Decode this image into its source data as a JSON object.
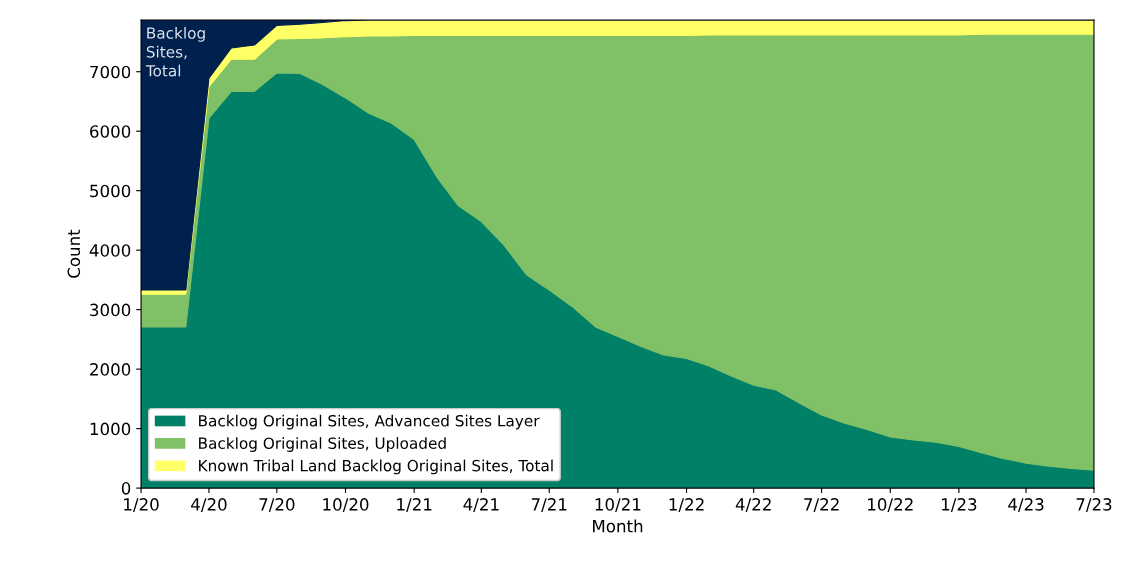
{
  "chart_data": {
    "type": "area",
    "stacked": true,
    "xlabel": "Month",
    "ylabel": "Count",
    "x": [
      "2020-01",
      "2020-02",
      "2020-03",
      "2020-04",
      "2020-05",
      "2020-06",
      "2020-07",
      "2020-08",
      "2020-09",
      "2020-10",
      "2020-11",
      "2020-12",
      "2021-01",
      "2021-02",
      "2021-03",
      "2021-04",
      "2021-05",
      "2021-06",
      "2021-07",
      "2021-08",
      "2021-09",
      "2021-10",
      "2021-11",
      "2021-12",
      "2022-01",
      "2022-02",
      "2022-03",
      "2022-04",
      "2022-05",
      "2022-06",
      "2022-07",
      "2022-08",
      "2022-09",
      "2022-10",
      "2022-11",
      "2022-12",
      "2023-01",
      "2023-02",
      "2023-03",
      "2023-04",
      "2023-05",
      "2023-06",
      "2023-07"
    ],
    "series": [
      {
        "name": "Backlog Original Sites, Advanced Sites Layer",
        "color": "#008066",
        "values": [
          2710,
          2710,
          2710,
          6220,
          6670,
          6670,
          6980,
          6970,
          6780,
          6560,
          6300,
          6140,
          5860,
          5220,
          4750,
          4480,
          4090,
          3580,
          3330,
          3050,
          2710,
          2550,
          2380,
          2240,
          2180,
          2050,
          1890,
          1730,
          1650,
          1430,
          1230,
          1090,
          980,
          860,
          810,
          770,
          700,
          590,
          500,
          420,
          370,
          330,
          300
        ]
      },
      {
        "name": "Backlog Original Sites, Uploaded",
        "color": "#80c066",
        "values": [
          550,
          550,
          550,
          530,
          540,
          540,
          570,
          590,
          790,
          1030,
          1300,
          1460,
          1750,
          2390,
          2860,
          3130,
          3520,
          4030,
          4280,
          4560,
          4900,
          5060,
          5230,
          5370,
          5430,
          5570,
          5730,
          5890,
          5970,
          6190,
          6390,
          6530,
          6640,
          6760,
          6810,
          6850,
          6920,
          7040,
          7130,
          7210,
          7260,
          7300,
          7330
        ]
      },
      {
        "name": "Known Tribal Land Backlog Original Sites, Total",
        "color": "#ffff66",
        "values": [
          70,
          70,
          70,
          140,
          190,
          240,
          230,
          240,
          260,
          270,
          270,
          270,
          260,
          260,
          260,
          260,
          260,
          260,
          260,
          260,
          260,
          260,
          260,
          260,
          260,
          250,
          250,
          250,
          250,
          250,
          250,
          250,
          250,
          250,
          250,
          250,
          250,
          240,
          240,
          240,
          240,
          240,
          240
        ]
      },
      {
        "name": "Backlog Sites, Total",
        "color": "#00204d",
        "values": [
          4540,
          4540,
          4540,
          980,
          470,
          420,
          90,
          70,
          40,
          10,
          0,
          0,
          0,
          0,
          0,
          0,
          0,
          0,
          0,
          0,
          0,
          0,
          0,
          0,
          0,
          0,
          0,
          0,
          0,
          0,
          0,
          0,
          0,
          0,
          0,
          0,
          0,
          0,
          0,
          0,
          0,
          0,
          0
        ]
      }
    ],
    "xlim": [
      "2020-01",
      "2023-07"
    ],
    "xticks": [
      {
        "value": "2020-01",
        "label": "1/20"
      },
      {
        "value": "2020-04",
        "label": "4/20"
      },
      {
        "value": "2020-07",
        "label": "7/20"
      },
      {
        "value": "2020-10",
        "label": "10/20"
      },
      {
        "value": "2021-01",
        "label": "1/21"
      },
      {
        "value": "2021-04",
        "label": "4/21"
      },
      {
        "value": "2021-07",
        "label": "7/21"
      },
      {
        "value": "2021-10",
        "label": "10/21"
      },
      {
        "value": "2022-01",
        "label": "1/22"
      },
      {
        "value": "2022-04",
        "label": "4/22"
      },
      {
        "value": "2022-07",
        "label": "7/22"
      },
      {
        "value": "2022-10",
        "label": "10/22"
      },
      {
        "value": "2023-01",
        "label": "1/23"
      },
      {
        "value": "2023-04",
        "label": "4/23"
      },
      {
        "value": "2023-07",
        "label": "7/23"
      }
    ],
    "ylim": [
      0,
      7870
    ],
    "yticks": [
      0,
      1000,
      2000,
      3000,
      4000,
      5000,
      6000,
      7000
    ],
    "grid": false,
    "legend": "bottom left"
  }
}
